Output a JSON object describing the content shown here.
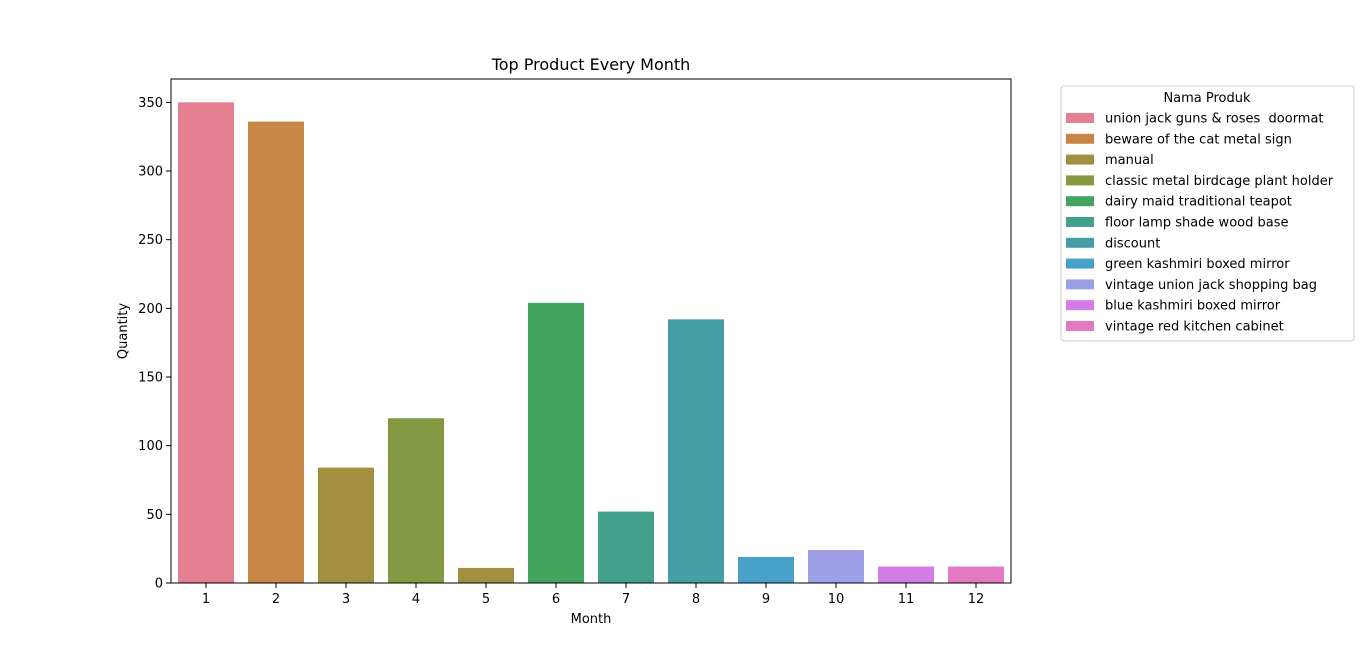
{
  "chart_data": {
    "type": "bar",
    "title": "Top Product Every Month",
    "xlabel": "Month",
    "ylabel": "Quantity",
    "ylim": [
      0,
      367
    ],
    "yticks": [
      0,
      50,
      100,
      150,
      200,
      250,
      300,
      350
    ],
    "categories": [
      "1",
      "2",
      "3",
      "4",
      "5",
      "6",
      "7",
      "8",
      "9",
      "10",
      "11",
      "12"
    ],
    "values": [
      350,
      336,
      84,
      120,
      11,
      204,
      52,
      192,
      19,
      24,
      12,
      12
    ],
    "bar_products": [
      "union jack guns & roses  doormat",
      "beware of the cat metal sign",
      "manual",
      "classic metal birdcage plant holder",
      "manual",
      "dairy maid traditional teapot",
      "floor lamp shade wood base",
      "discount",
      "green kashmiri boxed mirror",
      "vintage union jack shopping bag",
      "blue kashmiri boxed mirror",
      "vintage red kitchen cabinet"
    ],
    "legend": {
      "title": "Nama Produk",
      "placement": "outside-right-top",
      "entries": [
        {
          "label": "union jack guns & roses  doormat",
          "color": "#e58093"
        },
        {
          "label": "beware of the cat metal sign",
          "color": "#c98747"
        },
        {
          "label": "manual",
          "color": "#a28f40"
        },
        {
          "label": "classic metal birdcage plant holder",
          "color": "#849a42"
        },
        {
          "label": "dairy maid traditional teapot",
          "color": "#42a45d"
        },
        {
          "label": "floor lamp shade wood base",
          "color": "#43a08a"
        },
        {
          "label": "discount",
          "color": "#459ea5"
        },
        {
          "label": "green kashmiri boxed mirror",
          "color": "#48a1c8"
        },
        {
          "label": "vintage union jack shopping bag",
          "color": "#9da0e6"
        },
        {
          "label": "blue kashmiri boxed mirror",
          "color": "#d27ce6"
        },
        {
          "label": "vintage red kitchen cabinet",
          "color": "#e379c2"
        }
      ]
    },
    "grid": false
  }
}
